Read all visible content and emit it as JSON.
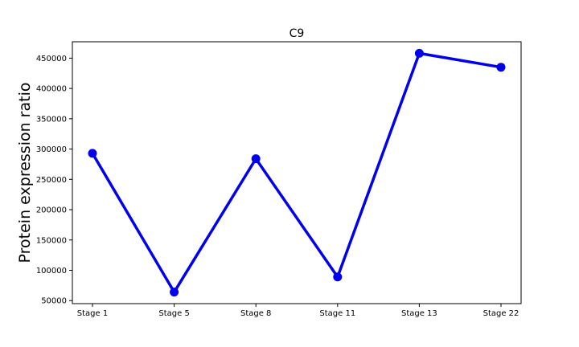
{
  "chart_data": {
    "type": "line",
    "title": "C9",
    "xlabel": "",
    "ylabel": "Protein expression ratio",
    "categories": [
      "Stage 1",
      "Stage 5",
      "Stage 8",
      "Stage 11",
      "Stage 13",
      "Stage 22"
    ],
    "series": [
      {
        "values": [
          293000,
          64000,
          284000,
          89000,
          458000,
          435000
        ],
        "color": "#0000ee",
        "marker": "circle"
      }
    ],
    "ylim": [
      45000,
      477000
    ],
    "yticks": [
      50000,
      100000,
      150000,
      200000,
      250000,
      300000,
      350000,
      400000,
      450000
    ],
    "ytick_labels": [
      "50000",
      "100000",
      "150000",
      "200000",
      "250000",
      "300000",
      "350000",
      "400000",
      "450000"
    ],
    "grid": false,
    "legend": false
  }
}
